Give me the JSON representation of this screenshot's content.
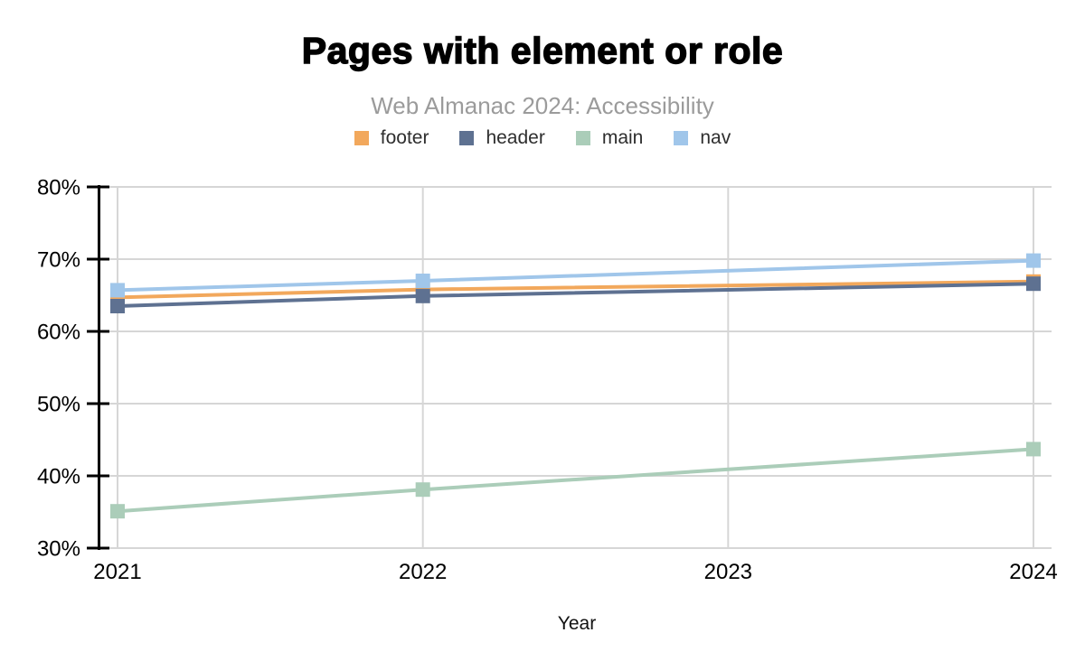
{
  "chart_data": {
    "type": "line",
    "title": "Pages with element or role",
    "subtitle": "Web Almanac 2024: Accessibility",
    "xlabel": "Year",
    "x_categories": [
      "2021",
      "2022",
      "2023",
      "2024"
    ],
    "ylim": [
      30,
      80
    ],
    "yticks": [
      {
        "value": 30,
        "label": "30%"
      },
      {
        "value": 40,
        "label": "40%"
      },
      {
        "value": 50,
        "label": "50%"
      },
      {
        "value": 60,
        "label": "60%"
      },
      {
        "value": 70,
        "label": "70%"
      },
      {
        "value": 80,
        "label": "80%"
      }
    ],
    "grid": true,
    "legend_position": "top",
    "marker_shape": "square",
    "colors": {
      "axis": "#000000",
      "gridline": "#d6d6d6",
      "tick_label": "#000000"
    },
    "series": [
      {
        "name": "footer",
        "color": "#f2a85c",
        "values": [
          64.7,
          65.8,
          null,
          66.9
        ]
      },
      {
        "name": "header",
        "color": "#5e7191",
        "values": [
          63.5,
          64.9,
          null,
          66.6
        ]
      },
      {
        "name": "main",
        "color": "#abcdb9",
        "values": [
          35.1,
          38.1,
          null,
          43.7
        ]
      },
      {
        "name": "nav",
        "color": "#a0c6ea",
        "values": [
          65.7,
          67.0,
          null,
          69.8
        ]
      }
    ],
    "note": "no data points plotted for 2023; lines connect 2022 to 2024"
  }
}
